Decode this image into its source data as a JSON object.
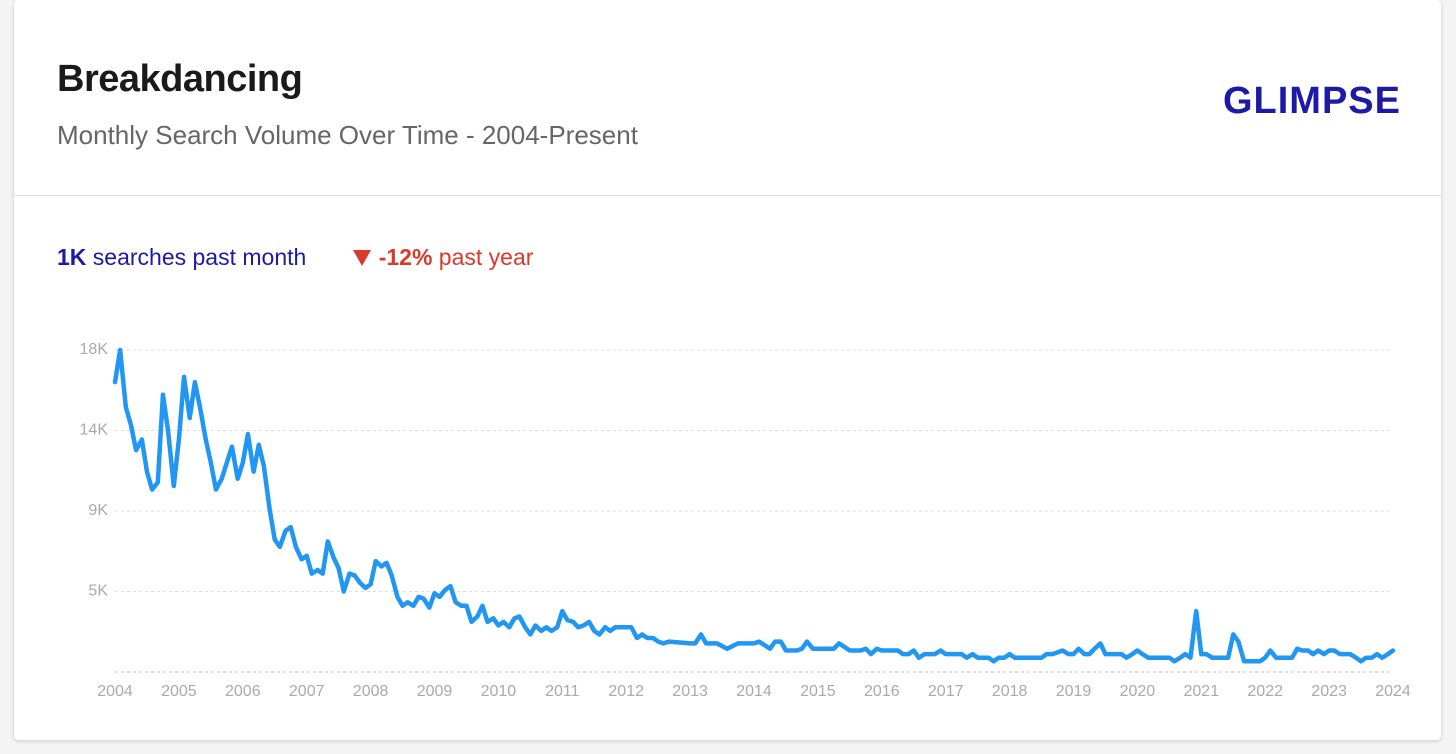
{
  "header": {
    "title": "Breakdancing",
    "subtitle": "Monthly Search Volume Over Time - 2004-Present",
    "logo": "GLIMPSE"
  },
  "stats": {
    "volume": "1K",
    "volume_text": "searches past month",
    "change": "-12%",
    "change_text": "past year"
  },
  "chart_data": {
    "type": "line",
    "color": "#2196f3",
    "grid": true,
    "xlim": [
      2004,
      2024
    ],
    "xticks": [
      2004,
      2005,
      2006,
      2007,
      2008,
      2009,
      2010,
      2011,
      2012,
      2013,
      2014,
      2015,
      2016,
      2017,
      2018,
      2019,
      2020,
      2021,
      2022,
      2023,
      2024
    ],
    "ylim": [
      0,
      18000
    ],
    "yticks": [
      {
        "value": 4500,
        "label": "5K"
      },
      {
        "value": 9000,
        "label": "9K"
      },
      {
        "value": 13500,
        "label": "14K"
      },
      {
        "value": 18000,
        "label": "18K"
      }
    ],
    "x": [
      2004,
      2004.08,
      2004.17,
      2004.25,
      2004.33,
      2004.42,
      2004.5,
      2004.58,
      2004.67,
      2004.75,
      2004.83,
      2004.92,
      2005,
      2005.08,
      2005.17,
      2005.25,
      2005.33,
      2005.42,
      2005.5,
      2005.58,
      2005.67,
      2005.75,
      2005.83,
      2005.92,
      2006,
      2006.08,
      2006.17,
      2006.25,
      2006.33,
      2006.42,
      2006.5,
      2006.58,
      2006.67,
      2006.75,
      2006.83,
      2006.92,
      2007,
      2007.08,
      2007.17,
      2007.25,
      2007.33,
      2007.42,
      2007.5,
      2007.58,
      2007.67,
      2007.75,
      2007.83,
      2007.92,
      2008,
      2008.08,
      2008.17,
      2008.25,
      2008.33,
      2008.42,
      2008.5,
      2008.58,
      2008.67,
      2008.75,
      2008.83,
      2008.92,
      2009,
      2009.08,
      2009.17,
      2009.25,
      2009.33,
      2009.42,
      2009.5,
      2009.58,
      2009.67,
      2009.75,
      2009.83,
      2009.92,
      2010,
      2010.08,
      2010.17,
      2010.25,
      2010.33,
      2010.42,
      2010.5,
      2010.58,
      2010.67,
      2010.75,
      2010.83,
      2010.92,
      2011,
      2011.08,
      2011.17,
      2011.25,
      2011.33,
      2011.42,
      2011.5,
      2011.58,
      2011.67,
      2011.75,
      2011.83,
      2011.92,
      2012,
      2012.08,
      2012.17,
      2012.25,
      2012.33,
      2012.42,
      2012.5,
      2012.58,
      2012.67,
      2013,
      2013.08,
      2013.17,
      2013.25,
      2013.42,
      2013.58,
      2013.75,
      2014,
      2014.08,
      2014.25,
      2014.33,
      2014.42,
      2014.5,
      2014.67,
      2014.75,
      2014.83,
      2014.92,
      2015,
      2015.25,
      2015.33,
      2015.5,
      2015.67,
      2015.75,
      2015.83,
      2015.92,
      2016,
      2016.25,
      2016.33,
      2016.42,
      2016.5,
      2016.58,
      2016.67,
      2016.83,
      2016.92,
      2017,
      2017.25,
      2017.33,
      2017.42,
      2017.5,
      2017.67,
      2017.75,
      2017.83,
      2017.92,
      2018,
      2018.08,
      2018.33,
      2018.5,
      2018.58,
      2018.67,
      2018.75,
      2018.83,
      2018.92,
      2019,
      2019.08,
      2019.17,
      2019.25,
      2019.33,
      2019.42,
      2019.5,
      2019.75,
      2019.83,
      2019.92,
      2020,
      2020.08,
      2020.17,
      2020.42,
      2020.5,
      2020.58,
      2020.67,
      2020.75,
      2020.83,
      2020.92,
      2021,
      2021.08,
      2021.17,
      2021.42,
      2021.5,
      2021.58,
      2021.67,
      2021.92,
      2022,
      2022.08,
      2022.17,
      2022.42,
      2022.5,
      2022.58,
      2022.67,
      2022.75,
      2022.83,
      2022.92,
      2023,
      2023.08,
      2023.17,
      2023.33,
      2023.42,
      2023.5,
      2023.58,
      2023.67,
      2023.75,
      2023.83,
      2023.92,
      2024
    ],
    "values": [
      16200,
      18000,
      14800,
      13800,
      12400,
      13000,
      11200,
      10200,
      10600,
      15500,
      13500,
      10400,
      13000,
      16500,
      14200,
      16200,
      14800,
      13000,
      11700,
      10200,
      10800,
      11700,
      12600,
      10800,
      11700,
      13300,
      11200,
      12700,
      11500,
      9100,
      7400,
      7000,
      7900,
      8100,
      7000,
      6300,
      6500,
      5500,
      5700,
      5500,
      7300,
      6400,
      5800,
      4500,
      5500,
      5400,
      5000,
      4700,
      4900,
      6200,
      5900,
      6100,
      5400,
      4200,
      3700,
      3900,
      3700,
      4200,
      4100,
      3600,
      4400,
      4200,
      4600,
      4800,
      3900,
      3700,
      3700,
      2800,
      3100,
      3700,
      2800,
      3000,
      2600,
      2800,
      2500,
      3000,
      3100,
      2500,
      2100,
      2600,
      2300,
      2500,
      2300,
      2500,
      3400,
      2900,
      2800,
      2500,
      2600,
      2800,
      2300,
      2100,
      2500,
      2300,
      2500,
      2500,
      2500,
      2500,
      1900,
      2100,
      1900,
      1900,
      1700,
      1600,
      1700,
      1600,
      1600,
      2100,
      1600,
      1600,
      1300,
      1600,
      1600,
      1700,
      1300,
      1700,
      1700,
      1200,
      1200,
      1300,
      1700,
      1300,
      1300,
      1300,
      1600,
      1200,
      1200,
      1300,
      1000,
      1300,
      1200,
      1200,
      1000,
      1000,
      1200,
      800,
      1000,
      1000,
      1200,
      1000,
      1000,
      800,
      1000,
      800,
      800,
      600,
      800,
      800,
      1000,
      800,
      800,
      800,
      1000,
      1000,
      1100,
      1200,
      1000,
      1000,
      1300,
      1000,
      1000,
      1300,
      1600,
      1000,
      1000,
      800,
      1000,
      1200,
      1000,
      800,
      800,
      800,
      600,
      800,
      1000,
      800,
      3400,
      1000,
      1000,
      800,
      800,
      2100,
      1700,
      600,
      600,
      800,
      1200,
      800,
      800,
      1300,
      1200,
      1200,
      1000,
      1200,
      1000,
      1200,
      1200,
      1000,
      1000,
      800,
      600,
      800,
      800,
      1000,
      800,
      1000,
      1200
    ]
  }
}
